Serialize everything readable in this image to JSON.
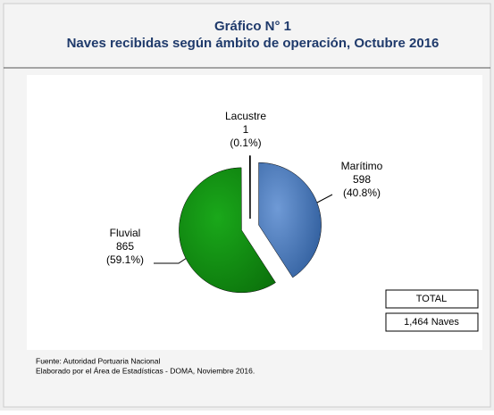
{
  "chart_data": {
    "type": "pie",
    "title": "Gráfico N° 1",
    "subtitle": "Naves recibidas según ámbito de operación, Octubre 2016",
    "categories": [
      "Marítimo",
      "Fluvial",
      "Lacustre"
    ],
    "values": [
      598,
      865,
      1
    ],
    "percent_labels": [
      "(40.8%)",
      "(59.1%)",
      "(0.1%)"
    ],
    "colors": [
      "#4a7cc0",
      "#129412",
      "#ffffff"
    ],
    "total_box": {
      "title": "TOTAL",
      "value": "1,464 Naves"
    },
    "source": [
      "Fuente: Autoridad Portuaria Nacional",
      "Elaborado por el Área de Estadísticas - DOMA, Noviembre  2016."
    ]
  }
}
